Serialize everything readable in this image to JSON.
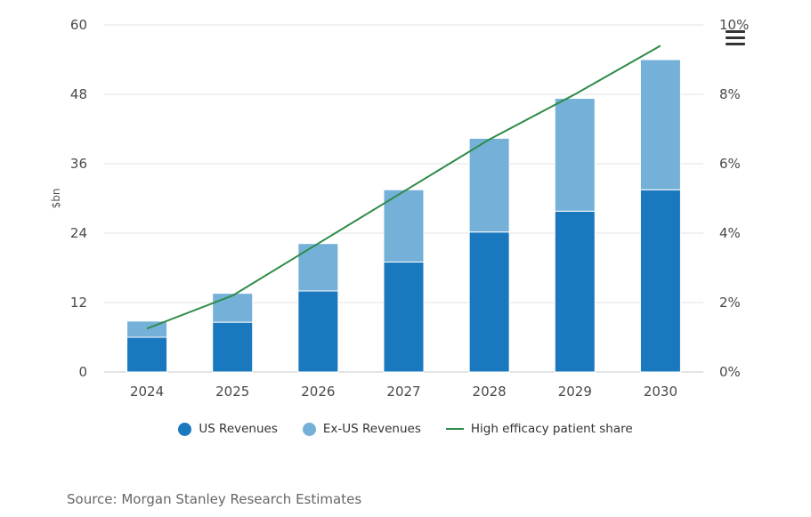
{
  "chart_data": {
    "type": "bar",
    "stacked": true,
    "categories": [
      "2024",
      "2025",
      "2026",
      "2027",
      "2028",
      "2029",
      "2030"
    ],
    "series": [
      {
        "name": "US Revenues",
        "kind": "bar",
        "axis": "left",
        "color": "#1a78bf",
        "values": [
          6.0,
          8.6,
          14.0,
          19.0,
          24.2,
          27.8,
          31.5
        ]
      },
      {
        "name": "Ex-US Revenues",
        "kind": "bar",
        "axis": "left",
        "color": "#74b0d8",
        "values": [
          2.8,
          5.0,
          8.2,
          12.5,
          16.2,
          19.5,
          22.5
        ]
      },
      {
        "name": "High efficacy patient share",
        "kind": "line",
        "axis": "right",
        "color": "#2e8b47",
        "values": [
          1.25,
          2.2,
          3.7,
          5.2,
          6.7,
          8.0,
          9.4
        ]
      }
    ],
    "ylabel": "$bn",
    "ylim": [
      0,
      60
    ],
    "yticks": [
      0,
      12,
      24,
      36,
      48,
      60
    ],
    "y2lim": [
      0,
      10
    ],
    "y2ticks": [
      "0%",
      "2%",
      "4%",
      "6%",
      "8%",
      "10%"
    ],
    "legend_position": "bottom-center",
    "grid": true
  },
  "source": "Source: Morgan Stanley Research Estimates",
  "menu_icon": "hamburger-menu-icon"
}
